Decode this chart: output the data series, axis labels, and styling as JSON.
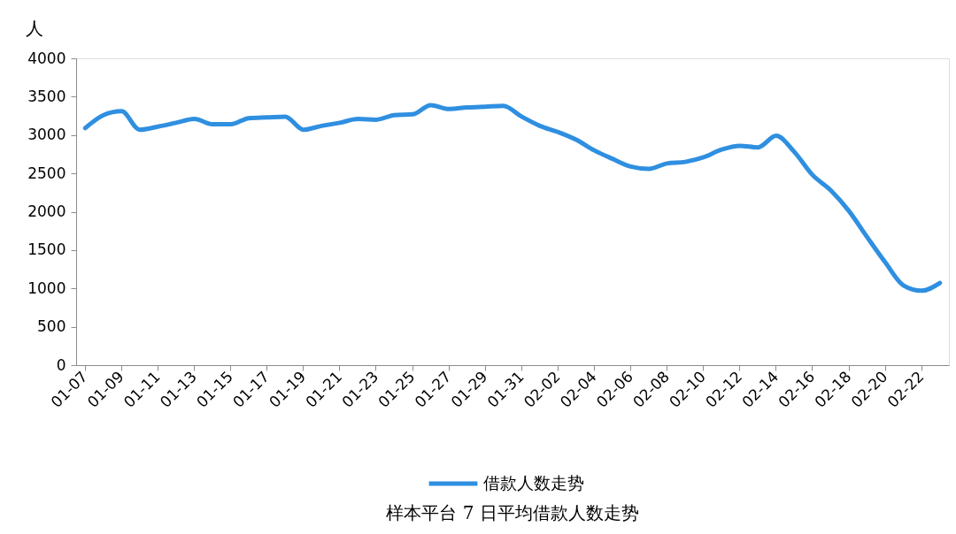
{
  "chart_data": {
    "type": "line",
    "ylabel": "人",
    "annotations": [
      "样本平台 7 日平均借款人数走势"
    ],
    "categories": [
      "01-07",
      null,
      "01-09",
      null,
      "01-11",
      null,
      "01-13",
      null,
      "01-15",
      null,
      "01-17",
      null,
      "01-19",
      null,
      "01-21",
      null,
      "01-23",
      null,
      "01-25",
      null,
      "01-27",
      null,
      "01-29",
      null,
      "01-31",
      null,
      "02-02",
      null,
      "02-04",
      null,
      "02-06",
      null,
      "02-08",
      null,
      "02-10",
      null,
      "02-12",
      null,
      "02-14",
      null,
      "02-16",
      null,
      "02-18",
      null,
      "02-20",
      null,
      "02-22",
      null
    ],
    "series": [
      {
        "name": "借款人数走势",
        "color": "#2f8fe0",
        "values": [
          3090,
          3260,
          3310,
          3070,
          3110,
          3160,
          3210,
          3140,
          3140,
          3220,
          3230,
          3240,
          3070,
          3120,
          3160,
          3210,
          3200,
          3260,
          3270,
          3390,
          3340,
          3360,
          3370,
          3380,
          3240,
          3120,
          3040,
          2940,
          2800,
          2690,
          2590,
          2560,
          2630,
          2650,
          2710,
          2810,
          2860,
          2840,
          2990,
          2780,
          2480,
          2280,
          2010,
          1670,
          1340,
          1040,
          970,
          1070
        ]
      }
    ],
    "ylim": [
      0,
      4000
    ],
    "yticks": [
      0,
      500,
      1000,
      1500,
      2000,
      2500,
      3000,
      3500,
      4000
    ],
    "grid": false,
    "legend": "bottom",
    "marker": "none",
    "line_style": "solid"
  }
}
